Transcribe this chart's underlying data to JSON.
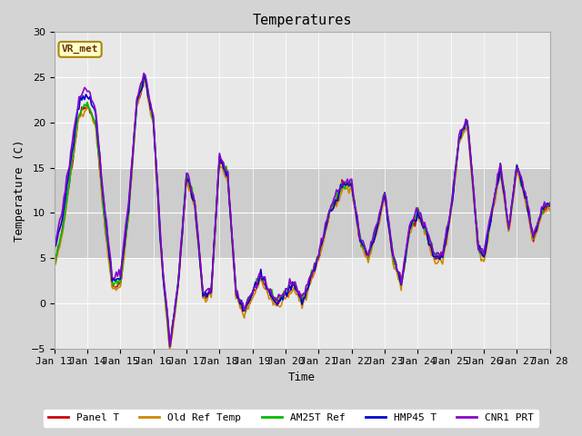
{
  "title": "Temperatures",
  "xlabel": "Time",
  "ylabel": "Temperature (C)",
  "ylim": [
    -5,
    30
  ],
  "xlim": [
    0,
    360
  ],
  "shade_y_low": 5,
  "shade_y_high": 15,
  "shade_color": "#bbbbbb",
  "xtick_labels": [
    "Jan 13",
    "Jan 14",
    "Jan 15",
    "Jan 16",
    "Jan 17",
    "Jan 18",
    "Jan 19",
    "Jan 20",
    "Jan 21",
    "Jan 22",
    "Jan 23",
    "Jan 24",
    "Jan 25",
    "Jan 26",
    "Jan 27",
    "Jan 28"
  ],
  "xtick_positions": [
    0,
    24,
    48,
    72,
    96,
    120,
    144,
    168,
    192,
    216,
    240,
    264,
    288,
    312,
    336,
    360
  ],
  "series_colors": {
    "Panel T": "#cc0000",
    "Old Ref Temp": "#cc8800",
    "AM25T Ref": "#00bb00",
    "HMP45 T": "#0000cc",
    "CNR1 PRT": "#8800cc"
  },
  "vr_met_label": "VR_met",
  "vr_met_text_color": "#663300",
  "vr_met_bg": "#ffffcc",
  "vr_met_edge": "#aa8800",
  "legend_entries": [
    "Panel T",
    "Old Ref Temp",
    "AM25T Ref",
    "HMP45 T",
    "CNR1 PRT"
  ],
  "fig_bg": "#d4d4d4",
  "ax_bg": "#e8e8e8",
  "grid_color": "#ffffff",
  "lw": 1.2
}
